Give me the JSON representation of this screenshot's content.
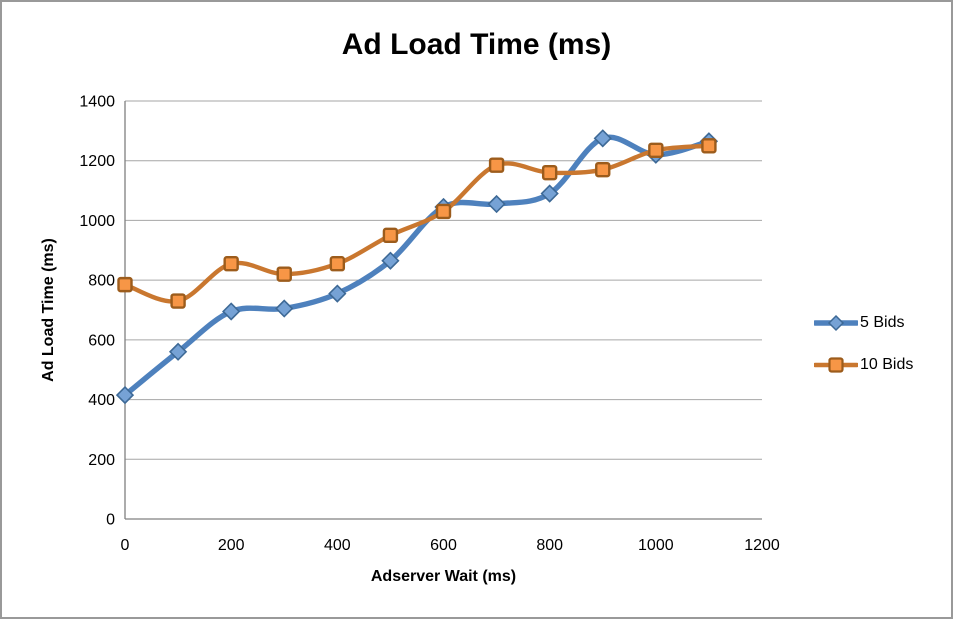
{
  "window": {
    "background": "#FFFFFF",
    "border_color": "#999999"
  },
  "chart_data": {
    "type": "line",
    "title": "Ad Load Time (ms)",
    "xlabel": "Adserver Wait (ms)",
    "ylabel": "Ad Load Time (ms)",
    "x": [
      0,
      100,
      200,
      300,
      400,
      500,
      600,
      700,
      800,
      900,
      1000,
      1100
    ],
    "series": [
      {
        "name": "5 Bids",
        "color": "#4E81BD",
        "line_width": 5.4,
        "marker": "diamond",
        "marker_fill": "#76A2D5",
        "marker_stroke": "#3D6996",
        "values": [
          415,
          560,
          695,
          705,
          755,
          865,
          1045,
          1055,
          1090,
          1275,
          1220,
          1265
        ]
      },
      {
        "name": "10 Bids",
        "color": "#C9772F",
        "line_width": 4.4,
        "marker": "square",
        "marker_fill": "#F79646",
        "marker_stroke": "#9C5C1C",
        "values": [
          785,
          730,
          855,
          820,
          855,
          950,
          1030,
          1185,
          1160,
          1170,
          1235,
          1250
        ]
      }
    ],
    "xlim": [
      0,
      1200
    ],
    "ylim": [
      0,
      1400
    ],
    "x_ticks": [
      0,
      200,
      400,
      600,
      800,
      1000,
      1200
    ],
    "y_ticks": [
      0,
      200,
      400,
      600,
      800,
      1000,
      1200,
      1400
    ],
    "grid": "horizontal",
    "grid_color": "#A6A6A6",
    "axis_color": "#808080",
    "legend_position": "right",
    "tick_font_size": 16
  }
}
